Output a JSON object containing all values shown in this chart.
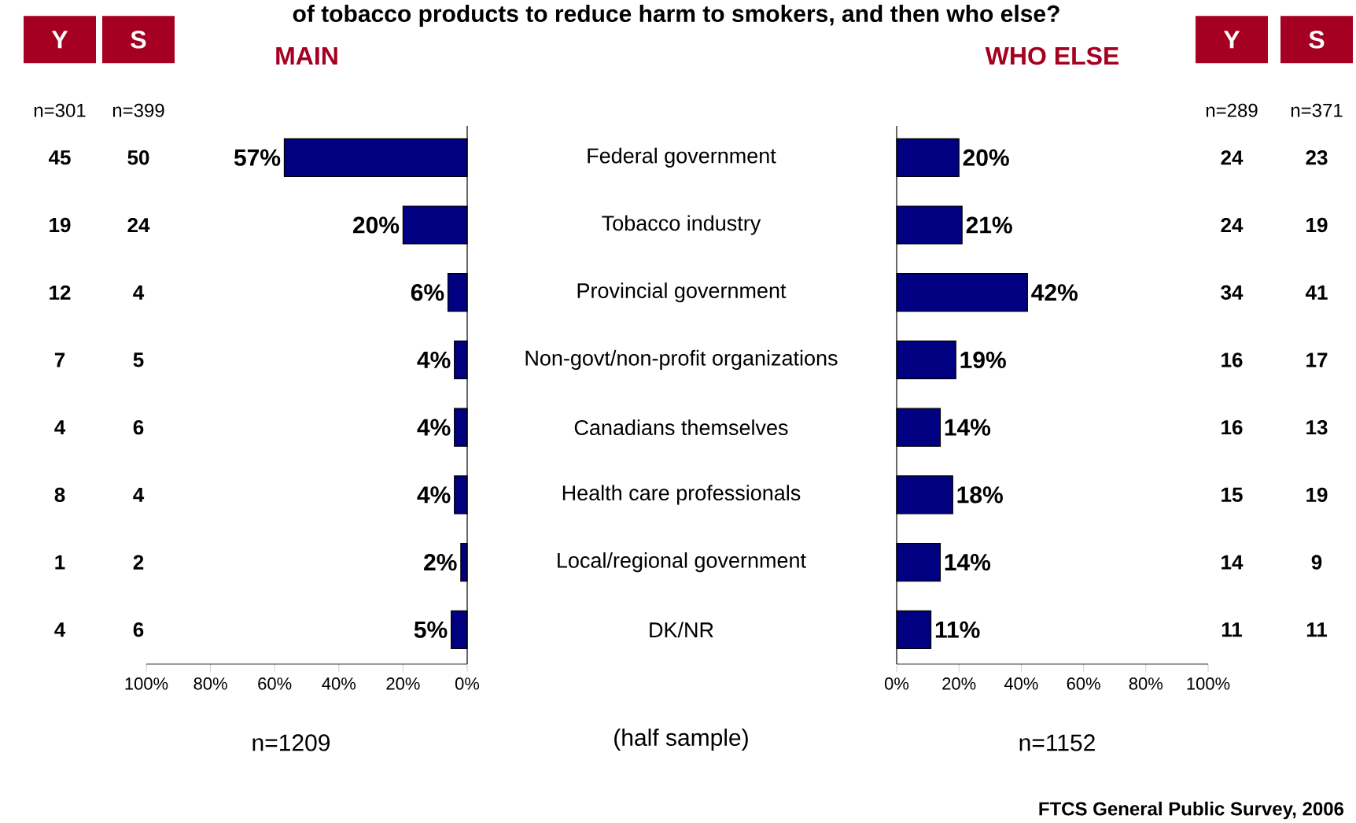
{
  "chart_data": [
    {
      "type": "other",
      "annotations": [
        "Y",
        "S",
        "n=301",
        "n=399",
        "45",
        "50",
        "19",
        "24",
        "12",
        "4",
        "7",
        "5",
        "4",
        "6",
        "8",
        "4",
        "1",
        "2",
        "4",
        "6"
      ]
    },
    {
      "type": "bar",
      "orientation": "horizontal",
      "title": "MAIN",
      "categories": [
        "Federal government",
        "Tobacco industry",
        "Provincial government",
        "Non-govt/non-profit organizations",
        "Canadians themselves",
        "Health care professionals",
        "Local/regional government",
        "DK/NR"
      ],
      "values": [
        57,
        20,
        6,
        4,
        4,
        4,
        2,
        5
      ],
      "color": "#000080",
      "value_labels": [
        "57%",
        "20%",
        "6%",
        "4%",
        "4%",
        "4%",
        "2%",
        "5%"
      ],
      "xlim": [
        100,
        0
      ],
      "xticks": [
        {
          "value": 100,
          "label": "100%"
        },
        {
          "value": 80,
          "label": "80%"
        },
        {
          "value": 60,
          "label": "60%"
        },
        {
          "value": 40,
          "label": "40%"
        },
        {
          "value": 20,
          "label": "20%"
        },
        {
          "value": 0,
          "label": "0%"
        }
      ],
      "annotations": [
        "of tobacco products to reduce harm to smokers, and then who else?",
        "n=1209"
      ]
    },
    {
      "type": "bar",
      "orientation": "horizontal",
      "title": "WHO ELSE",
      "categories": [
        null,
        null,
        null,
        null,
        null,
        null,
        null,
        null
      ],
      "values": [
        20,
        21,
        42,
        19,
        14,
        18,
        14,
        11
      ],
      "color": "#000080",
      "value_labels": [
        "20%",
        "21%",
        "42%",
        "19%",
        "14%",
        "18%",
        "14%",
        "11%"
      ],
      "xlim": [
        0,
        100
      ],
      "xticks": [
        {
          "value": 0,
          "label": "0%"
        },
        {
          "value": 20,
          "label": "20%"
        },
        {
          "value": 40,
          "label": "40%"
        },
        {
          "value": 60,
          "label": "60%"
        },
        {
          "value": 80,
          "label": "80%"
        },
        {
          "value": 100,
          "label": "100%"
        }
      ],
      "annotations": [
        "n=1152",
        "(half sample)",
        "FTCS General Public Survey, 2006"
      ]
    },
    {
      "type": "other",
      "annotations": [
        "Y",
        "S",
        "n=289",
        "n=371",
        "24",
        "23",
        "24",
        "19",
        "34",
        "41",
        "16",
        "17",
        "16",
        "13",
        "15",
        "19",
        "14",
        "9",
        "11",
        "11"
      ]
    }
  ]
}
